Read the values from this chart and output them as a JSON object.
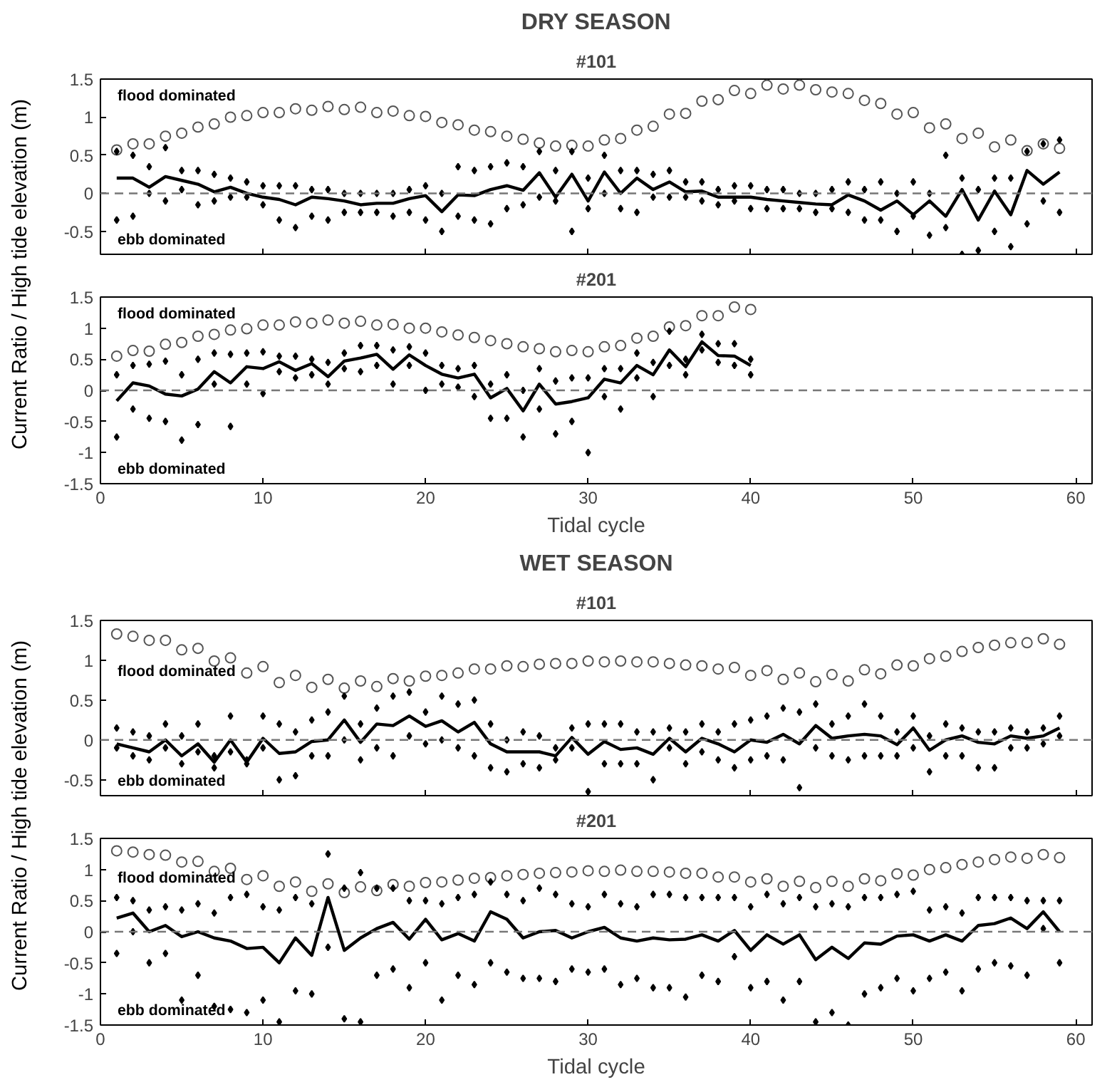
{
  "chart_data": [
    {
      "type": "scatter",
      "title": "DRY SEASON",
      "subtitle": "#101",
      "ylabel": "Current Ratio  / High tide elevation (m)",
      "annotations": [
        "flood dominated",
        "ebb dominated"
      ],
      "xlim": [
        0,
        61
      ],
      "ylim": [
        -0.8,
        1.5
      ],
      "xticks": [
        0,
        10,
        20,
        30,
        40,
        50,
        60
      ],
      "yticks": [
        -0.5,
        0,
        0.5,
        1,
        1.5
      ],
      "tick_labels": "y",
      "ref_lines": [
        {
          "axis": "y",
          "value": 0,
          "color": "#777777",
          "line_style": "dashed"
        }
      ],
      "series": [
        {
          "type": "scatter",
          "marker": "circle",
          "color": "#555555",
          "x": [
            1,
            2,
            3,
            4,
            5,
            6,
            7,
            8,
            9,
            10,
            11,
            12,
            13,
            14,
            15,
            16,
            17,
            18,
            19,
            20,
            21,
            22,
            23,
            24,
            25,
            26,
            27,
            28,
            29,
            30,
            31,
            32,
            33,
            34,
            35,
            36,
            37,
            38,
            39,
            40,
            41,
            42,
            43,
            44,
            45,
            46,
            47,
            48,
            49,
            50,
            51,
            52,
            53,
            54,
            55,
            56,
            57,
            58,
            59
          ],
          "values": [
            0.57,
            0.65,
            0.65,
            0.75,
            0.79,
            0.87,
            0.91,
            1.0,
            1.02,
            1.06,
            1.06,
            1.11,
            1.09,
            1.14,
            1.1,
            1.13,
            1.06,
            1.08,
            1.02,
            1.01,
            0.93,
            0.9,
            0.83,
            0.81,
            0.75,
            0.71,
            0.66,
            0.62,
            0.63,
            0.62,
            0.7,
            0.72,
            0.83,
            0.88,
            1.04,
            1.05,
            1.21,
            1.23,
            1.35,
            1.31,
            1.42,
            1.37,
            1.42,
            1.36,
            1.33,
            1.31,
            1.22,
            1.18,
            1.04,
            1.06,
            0.86,
            0.91,
            0.72,
            0.79,
            0.61,
            0.7,
            0.56,
            0.65,
            0.59
          ]
        },
        {
          "type": "scatter",
          "marker": "diamond",
          "color": "#000000",
          "x": [
            1,
            1,
            2,
            2,
            3,
            3,
            4,
            4,
            5,
            5,
            6,
            6,
            7,
            7,
            8,
            8,
            9,
            9,
            10,
            10,
            11,
            11,
            12,
            12,
            13,
            13,
            14,
            14,
            15,
            15,
            16,
            16,
            17,
            17,
            18,
            18,
            19,
            19,
            20,
            20,
            21,
            21,
            22,
            22,
            23,
            23,
            24,
            24,
            25,
            25,
            26,
            26,
            27,
            27,
            28,
            28,
            29,
            29,
            30,
            30,
            31,
            31,
            32,
            32,
            33,
            33,
            34,
            34,
            35,
            35,
            36,
            36,
            37,
            37,
            38,
            38,
            39,
            39,
            40,
            40,
            41,
            41,
            42,
            42,
            43,
            43,
            44,
            44,
            45,
            45,
            46,
            46,
            47,
            47,
            48,
            48,
            49,
            49,
            50,
            50,
            51,
            51,
            52,
            52,
            53,
            53,
            54,
            54,
            55,
            55,
            56,
            56,
            57,
            57,
            58,
            58,
            59,
            59
          ],
          "values": [
            -0.35,
            0.55,
            -0.3,
            0.5,
            0.0,
            0.35,
            -0.1,
            0.6,
            0.05,
            0.3,
            -0.15,
            0.3,
            -0.1,
            0.25,
            -0.05,
            0.2,
            -0.05,
            0.15,
            -0.15,
            0.1,
            -0.35,
            0.1,
            -0.45,
            0.1,
            -0.3,
            0.05,
            -0.35,
            0.05,
            -0.25,
            0.0,
            -0.25,
            0.0,
            -0.25,
            0.0,
            -0.3,
            0.0,
            -0.25,
            0.05,
            -0.35,
            0.1,
            -0.5,
            0.0,
            -0.3,
            0.35,
            -0.35,
            0.3,
            -0.4,
            0.35,
            -0.2,
            0.4,
            -0.15,
            0.35,
            -0.05,
            0.55,
            -0.1,
            0.3,
            -0.5,
            0.55,
            -0.2,
            0.2,
            0.0,
            0.5,
            -0.2,
            0.3,
            -0.25,
            0.3,
            -0.05,
            0.25,
            -0.05,
            0.3,
            -0.05,
            0.15,
            -0.1,
            0.15,
            -0.15,
            0.05,
            -0.1,
            0.1,
            -0.2,
            0.1,
            -0.2,
            0.05,
            -0.2,
            0.05,
            -0.2,
            0.0,
            -0.25,
            0.0,
            -0.2,
            0.05,
            -0.25,
            0.15,
            -0.35,
            0.05,
            -0.35,
            0.15,
            -0.5,
            0.0,
            -0.3,
            0.15,
            -0.55,
            0.0,
            -0.45,
            0.5,
            -0.8,
            0.2,
            -0.75,
            0.05,
            -0.5,
            0.2,
            -0.7,
            0.2,
            -0.4,
            0.55,
            -0.1,
            0.65,
            -0.25,
            0.7
          ]
        },
        {
          "type": "line",
          "color": "#000000",
          "x": [
            1,
            2,
            3,
            4,
            5,
            6,
            7,
            8,
            9,
            10,
            11,
            12,
            13,
            14,
            15,
            16,
            17,
            18,
            19,
            20,
            21,
            22,
            23,
            24,
            25,
            26,
            27,
            28,
            29,
            30,
            31,
            32,
            33,
            34,
            35,
            36,
            37,
            38,
            39,
            40,
            41,
            42,
            43,
            44,
            45,
            46,
            47,
            48,
            49,
            50,
            51,
            52,
            53,
            54,
            55,
            56,
            57,
            58,
            59
          ],
          "values": [
            0.2,
            0.2,
            0.08,
            0.22,
            0.17,
            0.12,
            0.02,
            0.08,
            0.0,
            -0.05,
            -0.08,
            -0.15,
            -0.05,
            -0.07,
            -0.1,
            -0.15,
            -0.13,
            -0.13,
            -0.07,
            -0.03,
            -0.24,
            -0.02,
            -0.03,
            0.05,
            0.1,
            0.04,
            0.27,
            -0.05,
            0.25,
            -0.1,
            0.28,
            0.0,
            0.2,
            0.05,
            0.15,
            0.02,
            0.03,
            -0.05,
            -0.05,
            -0.05,
            -0.08,
            -0.1,
            -0.12,
            -0.14,
            -0.15,
            -0.02,
            -0.1,
            -0.22,
            -0.1,
            -0.28,
            -0.1,
            -0.3,
            0.05,
            -0.35,
            0.03,
            -0.28,
            0.3,
            0.12,
            0.28
          ]
        }
      ]
    },
    {
      "type": "scatter",
      "title": "#201",
      "xlabel": "Tidal cycle",
      "annotations": [
        "flood dominated",
        "ebb dominated"
      ],
      "xlim": [
        0,
        61
      ],
      "ylim": [
        -1.5,
        1.5
      ],
      "xticks": [
        0,
        10,
        20,
        30,
        40,
        50,
        60
      ],
      "yticks": [
        -1.5,
        -1,
        -0.5,
        0,
        0.5,
        1,
        1.5
      ],
      "ref_lines": [
        {
          "axis": "y",
          "value": 0,
          "color": "#777777",
          "line_style": "dashed"
        }
      ],
      "series": [
        {
          "type": "scatter",
          "marker": "circle",
          "color": "#555555",
          "x": [
            1,
            2,
            3,
            4,
            5,
            6,
            7,
            8,
            9,
            10,
            11,
            12,
            13,
            14,
            15,
            16,
            17,
            18,
            19,
            20,
            21,
            22,
            23,
            24,
            25,
            26,
            27,
            28,
            29,
            30,
            31,
            32,
            33,
            34,
            35,
            36,
            37,
            38,
            39,
            40
          ],
          "values": [
            0.55,
            0.64,
            0.63,
            0.74,
            0.77,
            0.87,
            0.9,
            0.97,
            0.99,
            1.05,
            1.05,
            1.1,
            1.08,
            1.13,
            1.08,
            1.11,
            1.05,
            1.06,
            1.0,
            1.0,
            0.94,
            0.89,
            0.85,
            0.8,
            0.75,
            0.7,
            0.67,
            0.62,
            0.64,
            0.62,
            0.7,
            0.72,
            0.84,
            0.87,
            1.02,
            1.04,
            1.2,
            1.2,
            1.34,
            1.3
          ]
        },
        {
          "type": "scatter",
          "marker": "diamond",
          "color": "#000000",
          "x": [
            1,
            1,
            2,
            2,
            3,
            3,
            4,
            4,
            5,
            5,
            6,
            6,
            7,
            7,
            8,
            8,
            9,
            9,
            10,
            10,
            11,
            11,
            12,
            12,
            13,
            13,
            14,
            14,
            15,
            15,
            16,
            16,
            17,
            17,
            18,
            18,
            19,
            19,
            20,
            20,
            21,
            21,
            22,
            22,
            23,
            23,
            24,
            24,
            25,
            25,
            26,
            26,
            27,
            27,
            28,
            28,
            29,
            29,
            30,
            30,
            31,
            31,
            32,
            32,
            33,
            33,
            34,
            34,
            35,
            35,
            36,
            36,
            37,
            37,
            38,
            38,
            39,
            39,
            40,
            40
          ],
          "values": [
            -0.75,
            0.25,
            -0.3,
            0.4,
            -0.45,
            0.42,
            -0.5,
            0.47,
            -0.8,
            0.25,
            -0.55,
            0.5,
            0.1,
            0.6,
            -0.58,
            0.58,
            0.1,
            0.6,
            -0.05,
            0.62,
            0.3,
            0.55,
            0.2,
            0.55,
            0.25,
            0.5,
            0.1,
            0.45,
            0.35,
            0.6,
            0.3,
            0.72,
            0.4,
            0.72,
            0.1,
            0.65,
            0.4,
            0.7,
            0.0,
            0.6,
            0.1,
            0.4,
            0.05,
            0.35,
            -0.1,
            0.4,
            -0.45,
            0.1,
            -0.45,
            0.25,
            -0.75,
            0.0,
            -0.3,
            0.35,
            -0.7,
            0.15,
            -0.5,
            0.2,
            -1.0,
            0.2,
            -0.1,
            0.35,
            -0.3,
            0.35,
            0.2,
            0.6,
            -0.1,
            0.45,
            0.4,
            0.95,
            0.25,
            0.5,
            0.65,
            0.9,
            0.45,
            0.75,
            0.4,
            0.75,
            0.25,
            0.5
          ]
        },
        {
          "type": "line",
          "color": "#000000",
          "x": [
            1,
            2,
            3,
            4,
            5,
            6,
            7,
            8,
            9,
            10,
            11,
            12,
            13,
            14,
            15,
            16,
            17,
            18,
            19,
            20,
            21,
            22,
            23,
            24,
            25,
            26,
            27,
            28,
            29,
            30,
            31,
            32,
            33,
            34,
            35,
            36,
            37,
            38,
            39,
            40
          ],
          "values": [
            -0.17,
            0.12,
            0.07,
            -0.06,
            -0.09,
            0.02,
            0.3,
            0.12,
            0.38,
            0.35,
            0.46,
            0.32,
            0.43,
            0.22,
            0.47,
            0.52,
            0.58,
            0.34,
            0.57,
            0.4,
            0.26,
            0.2,
            0.26,
            -0.12,
            0.03,
            -0.33,
            0.1,
            -0.22,
            -0.18,
            -0.12,
            0.18,
            0.12,
            0.4,
            0.25,
            0.65,
            0.38,
            0.78,
            0.56,
            0.55,
            0.4
          ]
        }
      ]
    },
    {
      "type": "scatter",
      "title": "WET SEASON",
      "subtitle": "#101",
      "ylabel": "Current Ratio  / High tide elevation (m)",
      "annotations": [
        "flood dominated",
        "ebb dominated"
      ],
      "xlim": [
        0,
        61
      ],
      "ylim": [
        -0.7,
        1.5
      ],
      "xticks": [
        0,
        10,
        20,
        30,
        40,
        50,
        60
      ],
      "yticks": [
        -0.5,
        0,
        0.5,
        1,
        1.5
      ],
      "tick_labels": "y",
      "ref_lines": [
        {
          "axis": "y",
          "value": 0,
          "color": "#777777",
          "line_style": "dashed"
        }
      ],
      "series": [
        {
          "type": "scatter",
          "marker": "circle",
          "color": "#555555",
          "x": [
            1,
            2,
            3,
            4,
            5,
            6,
            7,
            8,
            9,
            10,
            11,
            12,
            13,
            14,
            15,
            16,
            17,
            18,
            19,
            20,
            21,
            22,
            23,
            24,
            25,
            26,
            27,
            28,
            29,
            30,
            31,
            32,
            33,
            34,
            35,
            36,
            37,
            38,
            39,
            40,
            41,
            42,
            43,
            44,
            45,
            46,
            47,
            48,
            49,
            50,
            51,
            52,
            53,
            54,
            55,
            56,
            57,
            58,
            59
          ],
          "values": [
            1.33,
            1.3,
            1.25,
            1.25,
            1.13,
            1.15,
            0.99,
            1.03,
            0.84,
            0.92,
            0.72,
            0.81,
            0.66,
            0.76,
            0.65,
            0.74,
            0.67,
            0.77,
            0.74,
            0.8,
            0.81,
            0.84,
            0.89,
            0.89,
            0.93,
            0.92,
            0.95,
            0.96,
            0.96,
            0.99,
            0.98,
            0.99,
            0.98,
            0.98,
            0.96,
            0.94,
            0.93,
            0.89,
            0.91,
            0.81,
            0.87,
            0.76,
            0.84,
            0.73,
            0.82,
            0.74,
            0.88,
            0.83,
            0.94,
            0.93,
            1.02,
            1.05,
            1.11,
            1.16,
            1.19,
            1.22,
            1.22,
            1.27,
            1.2
          ]
        },
        {
          "type": "scatter",
          "marker": "diamond",
          "color": "#000000",
          "x": [
            1,
            1,
            2,
            2,
            3,
            3,
            4,
            4,
            5,
            5,
            6,
            6,
            7,
            7,
            8,
            8,
            9,
            9,
            10,
            10,
            11,
            11,
            12,
            12,
            13,
            13,
            14,
            14,
            15,
            15,
            16,
            16,
            17,
            17,
            18,
            18,
            19,
            19,
            20,
            20,
            21,
            21,
            22,
            22,
            23,
            23,
            24,
            24,
            25,
            25,
            26,
            26,
            27,
            27,
            28,
            28,
            29,
            29,
            30,
            30,
            31,
            31,
            32,
            32,
            33,
            33,
            34,
            34,
            35,
            35,
            36,
            36,
            37,
            37,
            38,
            38,
            39,
            39,
            40,
            40,
            41,
            41,
            42,
            42,
            43,
            43,
            44,
            44,
            45,
            45,
            46,
            46,
            47,
            47,
            48,
            48,
            49,
            49,
            50,
            50,
            51,
            51,
            52,
            52,
            53,
            53,
            54,
            54,
            55,
            55,
            56,
            56,
            57,
            57,
            58,
            58,
            59,
            59
          ],
          "values": [
            -0.1,
            0.15,
            -0.2,
            0.1,
            -0.25,
            0.05,
            -0.1,
            0.2,
            -0.3,
            0.05,
            -0.15,
            0.2,
            -0.35,
            -0.2,
            -0.15,
            0.3,
            -0.3,
            -0.25,
            -0.1,
            0.3,
            -0.5,
            0.2,
            -0.45,
            0.1,
            -0.2,
            0.25,
            -0.2,
            0.35,
            0.0,
            0.55,
            -0.25,
            0.2,
            -0.1,
            0.4,
            -0.2,
            0.55,
            0.05,
            0.6,
            -0.05,
            0.35,
            0.0,
            0.55,
            -0.1,
            0.45,
            -0.2,
            0.5,
            -0.35,
            0.2,
            -0.4,
            0.0,
            -0.3,
            0.1,
            -0.35,
            0.05,
            -0.25,
            -0.1,
            -0.1,
            0.15,
            -0.65,
            0.2,
            -0.3,
            0.2,
            -0.3,
            0.2,
            -0.3,
            0.1,
            -0.5,
            0.1,
            -0.1,
            0.15,
            -0.3,
            0.1,
            -0.15,
            0.2,
            -0.25,
            0.1,
            -0.35,
            0.2,
            -0.25,
            0.25,
            -0.2,
            0.3,
            -0.25,
            0.4,
            -0.6,
            0.35,
            -0.1,
            0.45,
            -0.2,
            0.2,
            -0.25,
            0.3,
            -0.2,
            0.45,
            -0.2,
            0.3,
            -0.2,
            0.1,
            -0.1,
            0.3,
            -0.4,
            0.05,
            -0.2,
            0.2,
            -0.2,
            0.15,
            -0.35,
            0.1,
            -0.35,
            0.1,
            -0.1,
            0.15,
            -0.1,
            0.1,
            -0.05,
            0.15,
            0.05,
            0.3
          ]
        },
        {
          "type": "line",
          "color": "#000000",
          "x": [
            1,
            2,
            3,
            4,
            5,
            6,
            7,
            8,
            9,
            10,
            11,
            12,
            13,
            14,
            15,
            16,
            17,
            18,
            19,
            20,
            21,
            22,
            23,
            24,
            25,
            26,
            27,
            28,
            29,
            30,
            31,
            32,
            33,
            34,
            35,
            36,
            37,
            38,
            39,
            40,
            41,
            42,
            43,
            44,
            45,
            46,
            47,
            48,
            49,
            50,
            51,
            52,
            53,
            54,
            55,
            56,
            57,
            58,
            59
          ],
          "values": [
            -0.05,
            -0.1,
            -0.15,
            0.0,
            -0.2,
            -0.05,
            -0.28,
            0.0,
            -0.28,
            0.02,
            -0.17,
            -0.15,
            -0.02,
            0.0,
            0.25,
            -0.03,
            0.2,
            0.18,
            0.3,
            0.17,
            0.24,
            0.1,
            0.22,
            -0.05,
            -0.15,
            -0.15,
            -0.15,
            -0.2,
            0.03,
            -0.18,
            -0.02,
            -0.12,
            -0.1,
            -0.18,
            0.02,
            -0.15,
            0.02,
            -0.05,
            -0.15,
            0.0,
            -0.03,
            0.07,
            -0.05,
            0.18,
            0.02,
            0.05,
            0.07,
            0.05,
            -0.06,
            0.15,
            -0.13,
            0.0,
            0.05,
            -0.03,
            -0.05,
            0.05,
            0.02,
            0.05,
            0.15
          ]
        }
      ]
    },
    {
      "type": "scatter",
      "title": "#201",
      "xlabel": "Tidal cycle",
      "annotations": [
        "flood dominated",
        "ebb dominated"
      ],
      "xlim": [
        0,
        61
      ],
      "ylim": [
        -1.5,
        1.5
      ],
      "xticks": [
        0,
        10,
        20,
        30,
        40,
        50,
        60
      ],
      "yticks": [
        -1.5,
        -1,
        -0.5,
        0,
        0.5,
        1,
        1.5
      ],
      "ref_lines": [
        {
          "axis": "y",
          "value": 0,
          "color": "#777777",
          "line_style": "dashed"
        }
      ],
      "series": [
        {
          "type": "scatter",
          "marker": "circle",
          "color": "#555555",
          "x": [
            1,
            2,
            3,
            4,
            5,
            6,
            7,
            8,
            9,
            10,
            11,
            12,
            13,
            14,
            15,
            16,
            17,
            18,
            19,
            20,
            21,
            22,
            23,
            24,
            25,
            26,
            27,
            28,
            29,
            30,
            31,
            32,
            33,
            34,
            35,
            36,
            37,
            38,
            39,
            40,
            41,
            42,
            43,
            44,
            45,
            46,
            47,
            48,
            49,
            50,
            51,
            52,
            53,
            54,
            55,
            56,
            57,
            58,
            59
          ],
          "values": [
            1.3,
            1.28,
            1.24,
            1.23,
            1.12,
            1.13,
            0.97,
            1.02,
            0.84,
            0.9,
            0.73,
            0.8,
            0.65,
            0.77,
            0.63,
            0.72,
            0.66,
            0.76,
            0.73,
            0.79,
            0.8,
            0.83,
            0.86,
            0.87,
            0.9,
            0.92,
            0.94,
            0.95,
            0.96,
            0.98,
            0.97,
            0.99,
            0.97,
            0.97,
            0.96,
            0.94,
            0.94,
            0.88,
            0.88,
            0.8,
            0.85,
            0.73,
            0.81,
            0.71,
            0.81,
            0.73,
            0.85,
            0.82,
            0.93,
            0.91,
            1.0,
            1.03,
            1.08,
            1.12,
            1.16,
            1.2,
            1.18,
            1.24,
            1.19
          ]
        },
        {
          "type": "scatter",
          "marker": "diamond",
          "color": "#000000",
          "x": [
            1,
            1,
            2,
            2,
            3,
            3,
            4,
            4,
            5,
            5,
            6,
            6,
            7,
            7,
            8,
            8,
            9,
            9,
            10,
            10,
            11,
            11,
            12,
            12,
            13,
            13,
            14,
            14,
            15,
            15,
            16,
            16,
            17,
            17,
            18,
            18,
            19,
            19,
            20,
            20,
            21,
            21,
            22,
            22,
            23,
            23,
            24,
            24,
            25,
            25,
            26,
            26,
            27,
            27,
            28,
            28,
            29,
            29,
            30,
            30,
            31,
            31,
            32,
            32,
            33,
            33,
            34,
            34,
            35,
            35,
            36,
            36,
            37,
            37,
            38,
            38,
            39,
            39,
            40,
            40,
            41,
            41,
            42,
            42,
            43,
            43,
            44,
            44,
            45,
            45,
            46,
            46,
            47,
            47,
            48,
            48,
            49,
            49,
            50,
            50,
            51,
            51,
            52,
            52,
            53,
            53,
            54,
            54,
            55,
            55,
            56,
            56,
            57,
            57,
            58,
            58,
            59,
            59
          ],
          "values": [
            -0.35,
            0.55,
            0.0,
            0.5,
            -0.5,
            0.35,
            -0.35,
            0.4,
            -1.1,
            0.35,
            -0.7,
            0.45,
            -1.2,
            0.3,
            -1.25,
            0.55,
            -1.3,
            0.6,
            -1.1,
            0.4,
            -1.45,
            0.35,
            -0.95,
            0.55,
            -1.0,
            0.45,
            -0.25,
            1.25,
            -1.4,
            0.7,
            -1.45,
            0.95,
            -0.7,
            0.7,
            -0.6,
            0.7,
            -0.9,
            0.5,
            -0.5,
            0.5,
            -1.1,
            0.45,
            -0.7,
            0.55,
            -0.85,
            0.6,
            -0.5,
            0.8,
            -0.65,
            0.6,
            -0.75,
            0.5,
            -0.75,
            0.7,
            -0.8,
            0.6,
            -0.6,
            0.45,
            -0.65,
            0.4,
            -0.6,
            0.6,
            -0.85,
            0.45,
            -0.75,
            0.4,
            -0.9,
            0.6,
            -0.9,
            0.6,
            -1.05,
            0.55,
            -0.7,
            0.55,
            -0.8,
            0.55,
            -0.4,
            0.55,
            -0.9,
            0.4,
            -0.8,
            0.6,
            -1.1,
            0.45,
            -0.8,
            0.55,
            -1.45,
            0.4,
            -1.3,
            0.45,
            -1.5,
            0.4,
            -1.0,
            0.55,
            -0.9,
            0.55,
            -0.75,
            0.6,
            -0.95,
            0.65,
            -0.75,
            0.35,
            -0.65,
            0.4,
            -0.95,
            0.3,
            -0.6,
            0.55,
            -0.5,
            0.55,
            -0.55,
            0.55,
            -0.7,
            0.5,
            0.05,
            0.5,
            -0.5,
            0.5
          ]
        },
        {
          "type": "line",
          "color": "#000000",
          "x": [
            1,
            2,
            3,
            4,
            5,
            6,
            7,
            8,
            9,
            10,
            11,
            12,
            13,
            14,
            15,
            16,
            17,
            18,
            19,
            20,
            21,
            22,
            23,
            24,
            25,
            26,
            27,
            28,
            29,
            30,
            31,
            32,
            33,
            34,
            35,
            36,
            37,
            38,
            39,
            40,
            41,
            42,
            43,
            44,
            45,
            46,
            47,
            48,
            49,
            50,
            51,
            52,
            53,
            54,
            55,
            56,
            57,
            58,
            59
          ],
          "values": [
            0.22,
            0.3,
            0.0,
            0.1,
            -0.08,
            0.0,
            -0.1,
            -0.15,
            -0.27,
            -0.25,
            -0.5,
            -0.1,
            -0.38,
            0.55,
            -0.3,
            -0.1,
            0.05,
            0.15,
            -0.12,
            0.2,
            -0.13,
            -0.03,
            -0.15,
            0.32,
            0.2,
            -0.1,
            0.0,
            0.02,
            -0.1,
            0.0,
            0.07,
            -0.1,
            -0.15,
            -0.1,
            -0.13,
            -0.12,
            -0.05,
            -0.15,
            0.02,
            -0.3,
            -0.05,
            -0.2,
            -0.05,
            -0.45,
            -0.25,
            -0.43,
            -0.18,
            -0.2,
            -0.07,
            -0.05,
            -0.15,
            -0.05,
            -0.15,
            0.1,
            0.13,
            0.22,
            0.05,
            0.32,
            0.0
          ]
        }
      ]
    }
  ]
}
